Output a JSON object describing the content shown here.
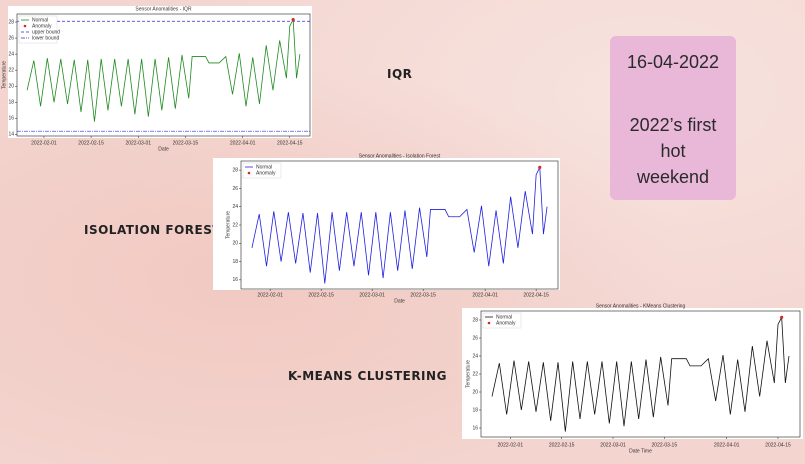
{
  "slide": {
    "labels": [
      "IQR",
      "ISOLATION FOREST",
      "K-MEANS CLUSTERING"
    ],
    "date": "16-04-2022",
    "note": "2022’s first hot weekend"
  },
  "chart_data": [
    {
      "type": "line",
      "title": "Sensor Anomalities - IQR",
      "xlabel": "Date",
      "ylabel": "Temperature",
      "x": [
        "2022-01-27",
        "2022-01-29",
        "2022-01-31",
        "2022-02-02",
        "2022-02-04",
        "2022-02-06",
        "2022-02-08",
        "2022-02-10",
        "2022-02-12",
        "2022-02-14",
        "2022-02-16",
        "2022-02-18",
        "2022-02-20",
        "2022-02-22",
        "2022-02-24",
        "2022-02-26",
        "2022-02-28",
        "2022-03-02",
        "2022-03-04",
        "2022-03-06",
        "2022-03-08",
        "2022-03-10",
        "2022-03-12",
        "2022-03-14",
        "2022-03-16",
        "2022-03-17",
        "2022-03-21",
        "2022-03-22",
        "2022-03-25",
        "2022-03-27",
        "2022-03-29",
        "2022-03-31",
        "2022-04-02",
        "2022-04-04",
        "2022-04-06",
        "2022-04-08",
        "2022-04-10",
        "2022-04-12",
        "2022-04-14",
        "2022-04-15",
        "2022-04-16",
        "2022-04-17",
        "2022-04-18"
      ],
      "series": [
        {
          "name": "Normal",
          "color": "#1f8a1f",
          "values": [
            19.5,
            23.2,
            17.5,
            23.5,
            18,
            23.4,
            17.8,
            23.3,
            16.8,
            23.3,
            15.6,
            23.4,
            17,
            23.4,
            17.5,
            23.4,
            16.5,
            23.4,
            16.2,
            23.4,
            17,
            23.6,
            17.2,
            23.9,
            18.5,
            23.7,
            23.7,
            22.9,
            22.9,
            23.7,
            19,
            24.1,
            17.5,
            23.6,
            17.8,
            25.1,
            19.5,
            25.7,
            21,
            27.5,
            28.3,
            21,
            24
          ]
        },
        {
          "name": "Anomaly",
          "color": "#d62728",
          "marker": true,
          "x": [
            "2022-04-16"
          ],
          "values": [
            28.3
          ]
        }
      ],
      "hlines": [
        {
          "name": "upper bound",
          "value": 28.1,
          "color": "#2b2bd6",
          "dash": "3,2"
        },
        {
          "name": "lower bound",
          "value": 14.4,
          "color": "#2b2bd6",
          "dash": "4,1,1,1"
        }
      ],
      "xlim": [
        "2022-01-24",
        "2022-04-21"
      ],
      "xticks": [
        "2022-02-01",
        "2022-02-15",
        "2022-03-01",
        "2022-03-15",
        "2022-04-01",
        "2022-04-15"
      ],
      "ylim": [
        13.8,
        29
      ],
      "yticks": [
        14,
        16,
        18,
        20,
        22,
        24,
        26,
        28
      ]
    },
    {
      "type": "line",
      "title": "Sensor Anomalities - Isolation Forest",
      "xlabel": "Date",
      "ylabel": "Temperature",
      "x": [
        "2022-01-27",
        "2022-01-29",
        "2022-01-31",
        "2022-02-02",
        "2022-02-04",
        "2022-02-06",
        "2022-02-08",
        "2022-02-10",
        "2022-02-12",
        "2022-02-14",
        "2022-02-16",
        "2022-02-18",
        "2022-02-20",
        "2022-02-22",
        "2022-02-24",
        "2022-02-26",
        "2022-02-28",
        "2022-03-02",
        "2022-03-04",
        "2022-03-06",
        "2022-03-08",
        "2022-03-10",
        "2022-03-12",
        "2022-03-14",
        "2022-03-16",
        "2022-03-17",
        "2022-03-21",
        "2022-03-22",
        "2022-03-25",
        "2022-03-27",
        "2022-03-29",
        "2022-03-31",
        "2022-04-02",
        "2022-04-04",
        "2022-04-06",
        "2022-04-08",
        "2022-04-10",
        "2022-04-12",
        "2022-04-14",
        "2022-04-15",
        "2022-04-16",
        "2022-04-17",
        "2022-04-18"
      ],
      "series": [
        {
          "name": "Normal",
          "color": "#1f1fe0",
          "values": [
            19.5,
            23.2,
            17.5,
            23.5,
            18,
            23.4,
            17.8,
            23.3,
            16.8,
            23.3,
            15.6,
            23.4,
            17,
            23.4,
            17.5,
            23.4,
            16.5,
            23.4,
            16.2,
            23.4,
            17,
            23.6,
            17.2,
            23.9,
            18.5,
            23.7,
            23.7,
            22.9,
            22.9,
            23.7,
            19,
            24.1,
            17.5,
            23.6,
            17.8,
            25.1,
            19.5,
            25.7,
            21,
            27.5,
            28.3,
            21,
            24
          ]
        },
        {
          "name": "Anomaly",
          "color": "#d62728",
          "marker": true,
          "x": [
            "2022-04-16"
          ],
          "values": [
            28.3
          ]
        }
      ],
      "xlim": [
        "2022-01-24",
        "2022-04-21"
      ],
      "xticks": [
        "2022-02-01",
        "2022-02-15",
        "2022-03-01",
        "2022-03-15",
        "2022-04-01",
        "2022-04-15"
      ],
      "ylim": [
        15,
        29
      ],
      "yticks": [
        16,
        18,
        20,
        22,
        24,
        26,
        28
      ]
    },
    {
      "type": "line",
      "title": "Sensor Anomalities - KMeans Clustering",
      "xlabel": "Date Time",
      "ylabel": "Temperature",
      "x": [
        "2022-01-27",
        "2022-01-29",
        "2022-01-31",
        "2022-02-02",
        "2022-02-04",
        "2022-02-06",
        "2022-02-08",
        "2022-02-10",
        "2022-02-12",
        "2022-02-14",
        "2022-02-16",
        "2022-02-18",
        "2022-02-20",
        "2022-02-22",
        "2022-02-24",
        "2022-02-26",
        "2022-02-28",
        "2022-03-02",
        "2022-03-04",
        "2022-03-06",
        "2022-03-08",
        "2022-03-10",
        "2022-03-12",
        "2022-03-14",
        "2022-03-16",
        "2022-03-17",
        "2022-03-21",
        "2022-03-22",
        "2022-03-25",
        "2022-03-27",
        "2022-03-29",
        "2022-03-31",
        "2022-04-02",
        "2022-04-04",
        "2022-04-06",
        "2022-04-08",
        "2022-04-10",
        "2022-04-12",
        "2022-04-14",
        "2022-04-15",
        "2022-04-16",
        "2022-04-17",
        "2022-04-18"
      ],
      "series": [
        {
          "name": "Normal",
          "color": "#111111",
          "values": [
            19.5,
            23.2,
            17.5,
            23.5,
            18,
            23.4,
            17.8,
            23.3,
            16.8,
            23.3,
            15.6,
            23.4,
            17,
            23.4,
            17.5,
            23.4,
            16.5,
            23.4,
            16.2,
            23.4,
            17,
            23.6,
            17.2,
            23.9,
            18.5,
            23.7,
            23.7,
            22.9,
            22.9,
            23.7,
            19,
            24.1,
            17.5,
            23.6,
            17.8,
            25.1,
            19.5,
            25.7,
            21,
            27.5,
            28.3,
            21,
            24
          ]
        },
        {
          "name": "Anomaly",
          "color": "#d62728",
          "marker": true,
          "x": [
            "2022-04-16"
          ],
          "values": [
            28.3
          ]
        }
      ],
      "xlim": [
        "2022-01-24",
        "2022-04-21"
      ],
      "xticks": [
        "2022-02-01",
        "2022-02-15",
        "2022-03-01",
        "2022-03-15",
        "2022-04-01",
        "2022-04-15"
      ],
      "ylim": [
        15,
        29
      ],
      "yticks": [
        16,
        18,
        20,
        22,
        24,
        26,
        28
      ]
    }
  ]
}
